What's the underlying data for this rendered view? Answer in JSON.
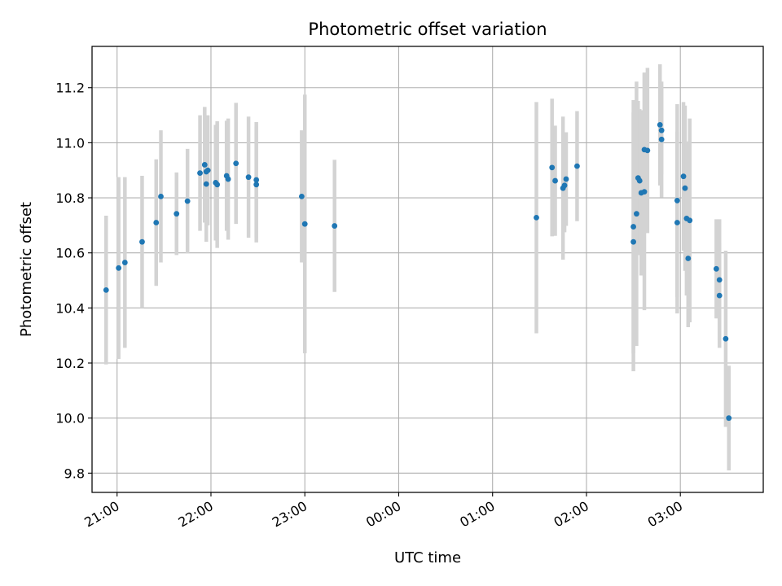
{
  "chart_data": {
    "type": "scatter",
    "title": "Photometric offset variation",
    "xlabel": "UTC time",
    "ylabel": "Photometric offset",
    "xlim": [
      "20:44",
      "03:53"
    ],
    "ylim": [
      9.73,
      11.35
    ],
    "x_ticks": [
      "21:00",
      "22:00",
      "23:00",
      "00:00",
      "01:00",
      "02:00",
      "03:00"
    ],
    "y_ticks": [
      "9.8",
      "10.0",
      "10.2",
      "10.4",
      "10.6",
      "10.8",
      "11.0",
      "11.2"
    ],
    "grid": true,
    "marker_color": "#1f77b4",
    "errorbar_color": "#d3d3d3",
    "series": [
      {
        "x": [
          "20:53",
          "21:01",
          "21:05",
          "21:16",
          "21:25",
          "21:28",
          "21:38",
          "21:45",
          "21:53",
          "21:56",
          "21:57",
          "21:57",
          "21:58",
          "22:03",
          "22:04",
          "22:10",
          "22:11",
          "22:16",
          "22:24",
          "22:29",
          "22:29",
          "22:58",
          "23:00",
          "23:19",
          "01:28",
          "01:38",
          "01:40",
          "01:45",
          "01:46",
          "01:47",
          "01:54",
          "02:30",
          "02:30",
          "02:32",
          "02:33",
          "02:34",
          "02:35",
          "02:37",
          "02:37",
          "02:39",
          "02:47",
          "02:48",
          "02:48",
          "02:58",
          "02:58",
          "03:02",
          "03:03",
          "03:04",
          "03:05",
          "03:06",
          "03:23",
          "03:25",
          "03:25",
          "03:29",
          "03:31"
        ],
        "y": [
          10.465,
          10.545,
          10.565,
          10.64,
          10.71,
          10.805,
          10.742,
          10.788,
          10.89,
          10.92,
          10.85,
          10.895,
          10.9,
          10.855,
          10.848,
          10.88,
          10.868,
          10.925,
          10.875,
          10.865,
          10.848,
          10.805,
          10.705,
          10.698,
          10.728,
          10.91,
          10.862,
          10.835,
          10.845,
          10.868,
          10.915,
          10.695,
          10.64,
          10.742,
          10.872,
          10.862,
          10.818,
          10.822,
          10.975,
          10.972,
          11.065,
          11.045,
          11.012,
          10.71,
          10.79,
          10.878,
          10.835,
          10.725,
          10.58,
          10.718,
          10.542,
          10.502,
          10.445,
          10.288,
          10.0
        ],
        "yerr": [
          0.27,
          0.33,
          0.31,
          0.24,
          0.23,
          0.24,
          0.15,
          0.19,
          0.21,
          0.21,
          0.21,
          0.2,
          0.2,
          0.21,
          0.23,
          0.2,
          0.22,
          0.22,
          0.22,
          0.21,
          0.21,
          0.24,
          0.47,
          0.24,
          0.42,
          0.25,
          0.2,
          0.26,
          0.17,
          0.17,
          0.2,
          0.46,
          0.47,
          0.48,
          0.28,
          0.26,
          0.3,
          0.43,
          0.28,
          0.3,
          0.22,
          0.16,
          0.21,
          0.33,
          0.35,
          0.27,
          0.3,
          0.28,
          0.25,
          0.37,
          0.18,
          0.22,
          0.19,
          0.32,
          0.19
        ]
      }
    ]
  }
}
